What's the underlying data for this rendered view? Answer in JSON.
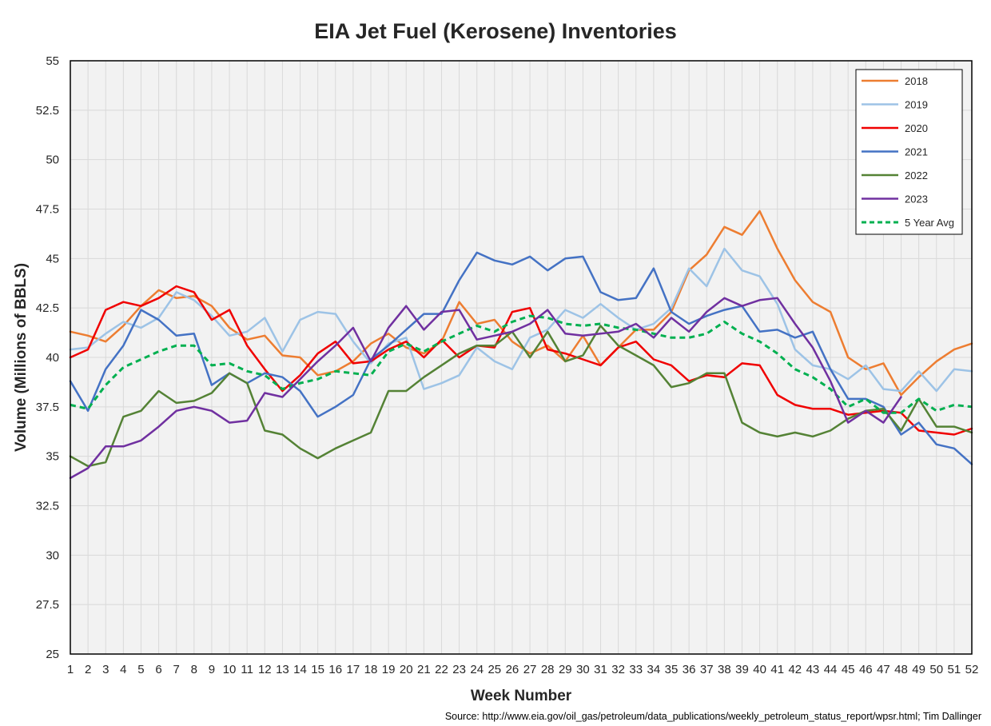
{
  "chart_data": {
    "type": "line",
    "title": "EIA Jet Fuel (Kerosene) Inventories",
    "xlabel": "Week Number",
    "ylabel": "Volume (Millions of BBLS)",
    "source": "Source: http://www.eia.gov/oil_gas/petroleum/data_publications/weekly_petroleum_status_report/wpsr.html; Tim Dallinger",
    "x": [
      1,
      2,
      3,
      4,
      5,
      6,
      7,
      8,
      9,
      10,
      11,
      12,
      13,
      14,
      15,
      16,
      17,
      18,
      19,
      20,
      21,
      22,
      23,
      24,
      25,
      26,
      27,
      28,
      29,
      30,
      31,
      32,
      33,
      34,
      35,
      36,
      37,
      38,
      39,
      40,
      41,
      42,
      43,
      44,
      45,
      46,
      47,
      48,
      49,
      50,
      51,
      52
    ],
    "xlim": [
      1,
      52
    ],
    "ylim": [
      25,
      55
    ],
    "yticks": [
      25,
      27.5,
      30,
      32.5,
      35,
      37.5,
      40,
      42.5,
      45,
      47.5,
      50,
      52.5,
      55
    ],
    "ytick_labels": [
      "25",
      "27.5",
      "30",
      "32.5",
      "35",
      "37.5",
      "40",
      "42.5",
      "45",
      "47.5",
      "50",
      "52.5",
      "55"
    ],
    "xtick_labels": [
      "1",
      "2",
      "3",
      "4",
      "5",
      "6",
      "7",
      "8",
      "9",
      "10",
      "11",
      "12",
      "13",
      "14",
      "15",
      "16",
      "17",
      "18",
      "19",
      "20",
      "21",
      "22",
      "23",
      "24",
      "25",
      "26",
      "27",
      "28",
      "29",
      "30",
      "31",
      "32",
      "33",
      "34",
      "35",
      "36",
      "37",
      "38",
      "39",
      "40",
      "41",
      "42",
      "43",
      "44",
      "45",
      "46",
      "47",
      "48",
      "49",
      "50",
      "51",
      "52"
    ],
    "grid": true,
    "legend_position": "top-right",
    "series": [
      {
        "name": "2018",
        "color": "#ED7D31",
        "dash": "solid",
        "values": [
          41.3,
          41.1,
          40.8,
          41.6,
          42.6,
          43.4,
          43.0,
          43.1,
          42.6,
          41.5,
          40.9,
          41.1,
          40.1,
          40.0,
          39.1,
          39.3,
          39.8,
          40.7,
          41.2,
          40.5,
          40.2,
          40.8,
          42.8,
          41.7,
          41.9,
          40.8,
          40.2,
          40.6,
          39.8,
          41.1,
          39.6,
          40.5,
          41.4,
          41.4,
          42.3,
          44.4,
          45.2,
          46.6,
          46.2,
          47.4,
          45.5,
          43.9,
          42.8,
          42.3,
          40.0,
          39.4,
          39.7,
          38.1,
          39.0,
          39.8,
          40.4,
          40.7
        ]
      },
      {
        "name": "2019",
        "color": "#9DC3E6",
        "dash": "solid",
        "values": [
          40.4,
          40.5,
          41.2,
          41.8,
          41.5,
          42.0,
          43.3,
          42.9,
          42.1,
          41.1,
          41.3,
          42.0,
          40.3,
          41.9,
          42.3,
          42.2,
          40.8,
          39.7,
          40.7,
          41.0,
          38.4,
          38.7,
          39.1,
          40.5,
          39.8,
          39.4,
          41.0,
          41.4,
          42.4,
          42.0,
          42.7,
          42.0,
          41.4,
          41.7,
          42.5,
          44.5,
          43.6,
          45.5,
          44.4,
          44.1,
          42.7,
          40.4,
          39.6,
          39.4,
          38.9,
          39.6,
          38.4,
          38.3,
          39.3,
          38.3,
          39.4,
          39.3
        ]
      },
      {
        "name": "2020",
        "color": "#F00000",
        "dash": "solid",
        "values": [
          40.0,
          40.4,
          42.4,
          42.8,
          42.6,
          43.0,
          43.6,
          43.3,
          41.9,
          42.4,
          40.6,
          39.4,
          38.3,
          39.1,
          40.2,
          40.8,
          39.7,
          39.8,
          40.4,
          40.8,
          40.0,
          40.9,
          40.0,
          40.6,
          40.5,
          42.3,
          42.5,
          40.4,
          40.2,
          39.9,
          39.6,
          40.5,
          40.8,
          39.9,
          39.6,
          38.8,
          39.1,
          39.0,
          39.7,
          39.6,
          38.1,
          37.6,
          37.4,
          37.4,
          37.1,
          37.2,
          37.3,
          37.2,
          36.3,
          36.2,
          36.1,
          36.4
        ]
      },
      {
        "name": "2021",
        "color": "#4472C4",
        "dash": "solid",
        "values": [
          38.8,
          37.3,
          39.4,
          40.6,
          42.4,
          41.9,
          41.1,
          41.2,
          38.6,
          39.2,
          38.7,
          39.2,
          39.0,
          38.3,
          37.0,
          37.5,
          38.1,
          39.9,
          40.6,
          41.4,
          42.2,
          42.2,
          43.9,
          45.3,
          44.9,
          44.7,
          45.1,
          44.4,
          45.0,
          45.1,
          43.3,
          42.9,
          43.0,
          44.5,
          42.3,
          41.7,
          42.1,
          42.4,
          42.6,
          41.3,
          41.4,
          41.0,
          41.3,
          39.4,
          37.9,
          37.9,
          37.5,
          36.1,
          36.7,
          35.6,
          35.4,
          34.6
        ]
      },
      {
        "name": "2022",
        "color": "#548235",
        "dash": "solid",
        "values": [
          35.0,
          34.5,
          34.7,
          37.0,
          37.3,
          38.3,
          37.7,
          37.8,
          38.2,
          39.2,
          38.7,
          36.3,
          36.1,
          35.4,
          34.9,
          35.4,
          35.8,
          36.2,
          38.3,
          38.3,
          39.0,
          39.6,
          40.2,
          40.6,
          40.6,
          41.3,
          40.0,
          41.3,
          39.8,
          40.1,
          41.6,
          40.6,
          40.1,
          39.6,
          38.5,
          38.7,
          39.2,
          39.2,
          36.7,
          36.2,
          36.0,
          36.2,
          36.0,
          36.3,
          36.9,
          37.3,
          37.4,
          36.3,
          37.9,
          36.5,
          36.5,
          36.2
        ]
      },
      {
        "name": "2023",
        "color": "#7030A0",
        "dash": "solid",
        "values": [
          33.9,
          34.4,
          35.5,
          35.5,
          35.8,
          36.5,
          37.3,
          37.5,
          37.3,
          36.7,
          36.8,
          38.2,
          38.0,
          38.9,
          39.8,
          40.6,
          41.5,
          39.8,
          41.5,
          42.6,
          41.4,
          42.3,
          42.4,
          40.9,
          41.1,
          41.3,
          41.7,
          42.4,
          41.2,
          41.1,
          41.2,
          41.3,
          41.7,
          41.0,
          42.0,
          41.3,
          42.3,
          43.0,
          42.6,
          42.9,
          43.0,
          41.7,
          40.5,
          38.8,
          36.7,
          37.3,
          36.7,
          38.0,
          null,
          null,
          null,
          null
        ]
      },
      {
        "name": "5 Year Avg",
        "color": "#00B050",
        "dash": "dashed",
        "values": [
          37.6,
          37.4,
          38.6,
          39.5,
          39.9,
          40.3,
          40.6,
          40.6,
          39.6,
          39.7,
          39.3,
          39.1,
          38.4,
          38.7,
          38.9,
          39.3,
          39.2,
          39.1,
          40.3,
          40.7,
          40.3,
          40.8,
          41.2,
          41.6,
          41.3,
          41.8,
          42.1,
          42.0,
          41.7,
          41.6,
          41.7,
          41.5,
          41.4,
          41.2,
          41.0,
          41.0,
          41.2,
          41.8,
          41.2,
          40.8,
          40.2,
          39.4,
          39.0,
          38.4,
          37.5,
          37.9,
          37.2,
          37.2,
          37.9,
          37.3,
          37.6,
          37.5
        ]
      }
    ]
  }
}
